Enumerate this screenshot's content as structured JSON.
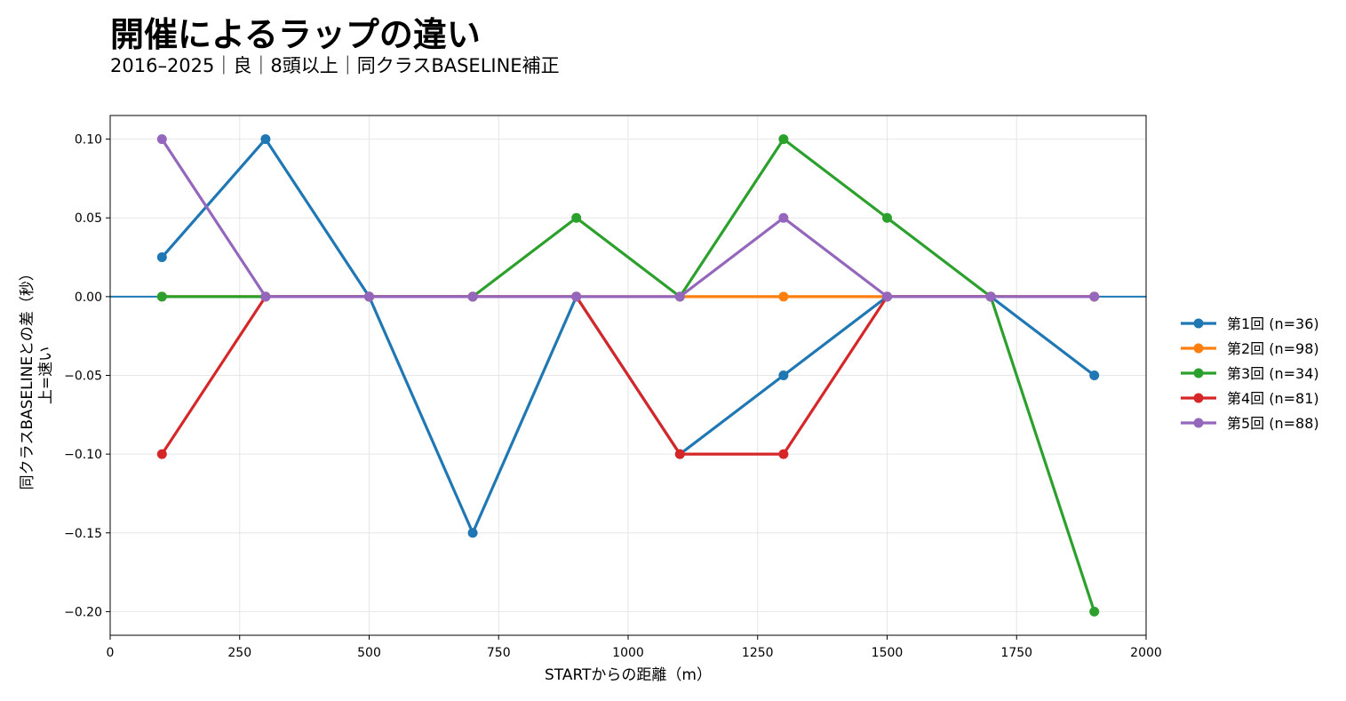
{
  "title": "開催によるラップの違い",
  "subtitle": "2016–2025｜良｜8頭以上｜同クラスBASELINE補正",
  "chart_data": {
    "type": "line",
    "xlabel": "STARTからの距離（m）",
    "ylabel_lines": [
      "同クラスBASELINEとの差（秒）",
      "上=速い"
    ],
    "xlim": [
      0,
      2000
    ],
    "ylim": [
      -0.215,
      0.115
    ],
    "x_ticks": [
      0,
      250,
      500,
      750,
      1000,
      1250,
      1500,
      1750,
      2000
    ],
    "y_ticks": [
      0.1,
      0.05,
      0.0,
      -0.05,
      -0.1,
      -0.15,
      -0.2
    ],
    "x_tick_labels": [
      "0",
      "250",
      "500",
      "750",
      "1000",
      "1250",
      "1500",
      "1750",
      "2000"
    ],
    "y_tick_labels": [
      "0.10",
      "0.05",
      "0.00",
      "−0.05",
      "−0.10",
      "−0.15",
      "−0.20"
    ],
    "grid": true,
    "legend_position": "right",
    "reference_line": 0.0,
    "reference_line_color": "#1f77b4",
    "x": [
      100,
      300,
      500,
      700,
      900,
      1100,
      1300,
      1500,
      1700,
      1900
    ],
    "series": [
      {
        "name": "第1回 (n=36)",
        "color": "#1f77b4",
        "values": [
          0.025,
          0.1,
          0.0,
          -0.15,
          0.0,
          -0.1,
          -0.05,
          0.0,
          0.0,
          -0.05
        ]
      },
      {
        "name": "第2回 (n=98)",
        "color": "#ff7f0e",
        "values": [
          0.0,
          0.0,
          0.0,
          0.0,
          0.0,
          0.0,
          0.0,
          0.0,
          0.0,
          0.0
        ]
      },
      {
        "name": "第3回 (n=34)",
        "color": "#2ca02c",
        "values": [
          0.0,
          0.0,
          0.0,
          0.0,
          0.05,
          0.0,
          0.1,
          0.05,
          0.0,
          -0.2
        ]
      },
      {
        "name": "第4回 (n=81)",
        "color": "#d62728",
        "values": [
          -0.1,
          0.0,
          0.0,
          0.0,
          0.0,
          -0.1,
          -0.1,
          0.0,
          0.0,
          0.0
        ]
      },
      {
        "name": "第5回 (n=88)",
        "color": "#9467bd",
        "values": [
          0.1,
          0.0,
          0.0,
          0.0,
          0.0,
          0.0,
          0.05,
          0.0,
          0.0,
          0.0
        ]
      }
    ]
  }
}
